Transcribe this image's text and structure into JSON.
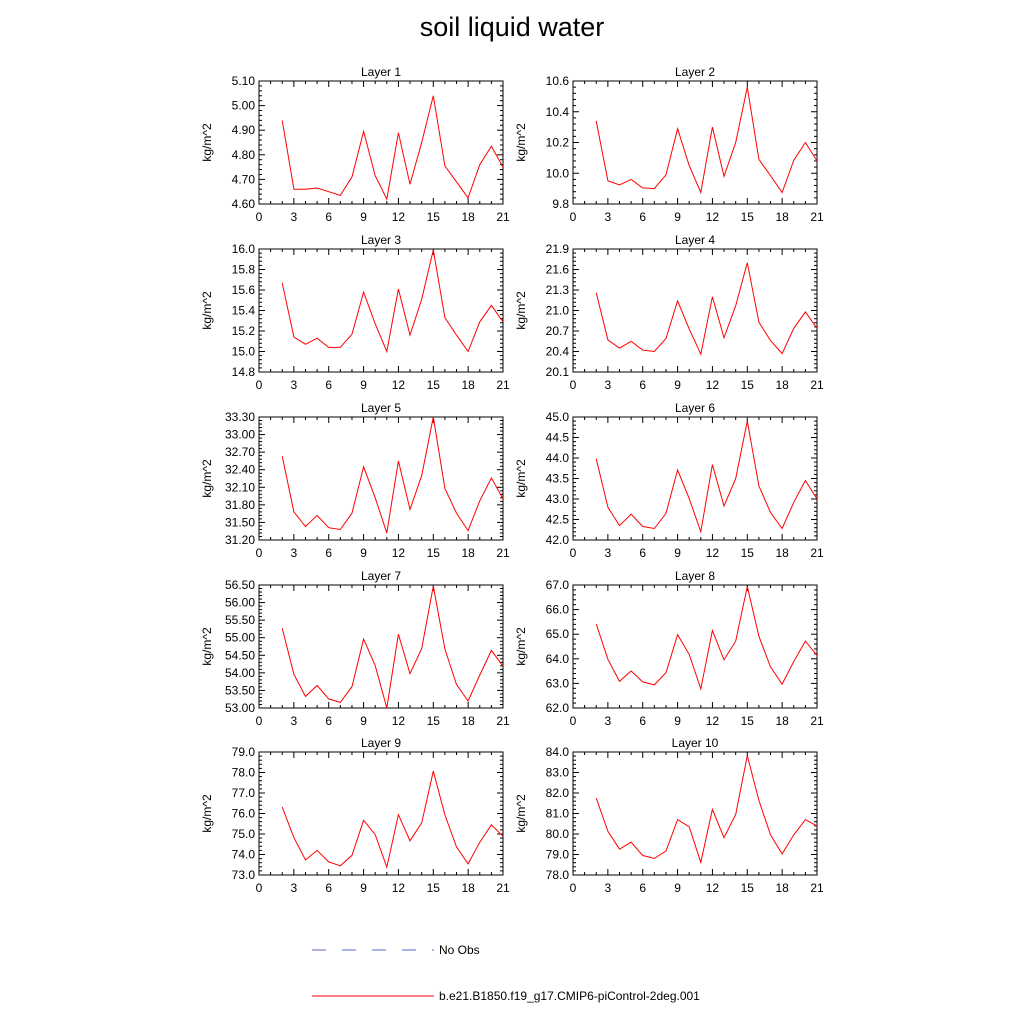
{
  "title": "soil liquid water",
  "legend": {
    "entries": [
      {
        "label": "No Obs",
        "color": "#5566cc",
        "style": "dashed"
      },
      {
        "label": "b.e21.B1850.f19_g17.CMIP6-piControl-2deg.001",
        "color": "#ff0000",
        "style": "solid"
      }
    ]
  },
  "chart_data": [
    {
      "type": "line",
      "title": "Layer 1",
      "ylabel": "kg/m^2",
      "xlim": [
        0,
        21
      ],
      "ylim": [
        4.6,
        5.1
      ],
      "xticks": [
        "0",
        "3",
        "6",
        "9",
        "12",
        "15",
        "18",
        "21"
      ],
      "yticks": [
        "4.60",
        "4.70",
        "4.80",
        "4.90",
        "5.00",
        "5.10"
      ],
      "x": [
        2,
        3,
        4,
        5,
        6,
        7,
        8,
        9,
        10,
        11,
        12,
        13,
        14,
        15,
        16,
        17,
        18,
        19,
        20,
        21
      ],
      "series": [
        {
          "name": "b.e21.B1850.f19_g17.CMIP6-piControl-2deg.001",
          "color": "#ff0000",
          "values": [
            4.94,
            4.66,
            4.66,
            4.665,
            4.65,
            4.635,
            4.71,
            4.895,
            4.715,
            4.62,
            4.89,
            4.68,
            4.85,
            5.04,
            4.755,
            4.69,
            4.625,
            4.76,
            4.835,
            4.75
          ]
        }
      ]
    },
    {
      "type": "line",
      "title": "Layer 2",
      "ylabel": "kg/m^2",
      "xlim": [
        0,
        21
      ],
      "ylim": [
        9.8,
        10.6
      ],
      "xticks": [
        "0",
        "3",
        "6",
        "9",
        "12",
        "15",
        "18",
        "21"
      ],
      "yticks": [
        "9.8",
        "10.0",
        "10.2",
        "10.4",
        "10.6"
      ],
      "x": [
        2,
        3,
        4,
        5,
        6,
        7,
        8,
        9,
        10,
        11,
        12,
        13,
        14,
        15,
        16,
        17,
        18,
        19,
        20,
        21
      ],
      "series": [
        {
          "name": "b.e21.B1850.f19_g17.CMIP6-piControl-2deg.001",
          "color": "#ff0000",
          "values": [
            10.34,
            9.95,
            9.925,
            9.96,
            9.905,
            9.9,
            9.99,
            10.29,
            10.05,
            9.875,
            10.3,
            9.98,
            10.2,
            10.56,
            10.09,
            9.985,
            9.875,
            10.085,
            10.2,
            10.08
          ]
        }
      ]
    },
    {
      "type": "line",
      "title": "Layer 3",
      "ylabel": "kg/m^2",
      "xlim": [
        0,
        21
      ],
      "ylim": [
        14.8,
        16.0
      ],
      "xticks": [
        "0",
        "3",
        "6",
        "9",
        "12",
        "15",
        "18",
        "21"
      ],
      "yticks": [
        "14.8",
        "15.0",
        "15.2",
        "15.4",
        "15.6",
        "15.8",
        "16.0"
      ],
      "x": [
        2,
        3,
        4,
        5,
        6,
        7,
        8,
        9,
        10,
        11,
        12,
        13,
        14,
        15,
        16,
        17,
        18,
        19,
        20,
        21
      ],
      "series": [
        {
          "name": "b.e21.B1850.f19_g17.CMIP6-piControl-2deg.001",
          "color": "#ff0000",
          "values": [
            15.67,
            15.14,
            15.07,
            15.13,
            15.04,
            15.04,
            15.17,
            15.58,
            15.27,
            15.0,
            15.61,
            15.16,
            15.51,
            15.99,
            15.33,
            15.16,
            15.0,
            15.29,
            15.45,
            15.29
          ]
        }
      ]
    },
    {
      "type": "line",
      "title": "Layer 4",
      "ylabel": "kg/m^2",
      "xlim": [
        0,
        21
      ],
      "ylim": [
        20.1,
        21.9
      ],
      "xticks": [
        "0",
        "3",
        "6",
        "9",
        "12",
        "15",
        "18",
        "21"
      ],
      "yticks": [
        "20.1",
        "20.4",
        "20.7",
        "21.0",
        "21.3",
        "21.6",
        "21.9"
      ],
      "x": [
        2,
        3,
        4,
        5,
        6,
        7,
        8,
        9,
        10,
        11,
        12,
        13,
        14,
        15,
        16,
        17,
        18,
        19,
        20,
        21
      ],
      "series": [
        {
          "name": "b.e21.B1850.f19_g17.CMIP6-piControl-2deg.001",
          "color": "#ff0000",
          "values": [
            21.26,
            20.57,
            20.45,
            20.55,
            20.42,
            20.4,
            20.59,
            21.14,
            20.73,
            20.36,
            21.2,
            20.6,
            21.07,
            21.7,
            20.83,
            20.56,
            20.37,
            20.74,
            20.98,
            20.74
          ]
        }
      ]
    },
    {
      "type": "line",
      "title": "Layer 5",
      "ylabel": "kg/m^2",
      "xlim": [
        0,
        21
      ],
      "ylim": [
        31.2,
        33.3
      ],
      "xticks": [
        "0",
        "3",
        "6",
        "9",
        "12",
        "15",
        "18",
        "21"
      ],
      "yticks": [
        "31.20",
        "31.50",
        "31.80",
        "32.10",
        "32.40",
        "32.70",
        "33.00",
        "33.30"
      ],
      "x": [
        2,
        3,
        4,
        5,
        6,
        7,
        8,
        9,
        10,
        11,
        12,
        13,
        14,
        15,
        16,
        17,
        18,
        19,
        20,
        21
      ],
      "series": [
        {
          "name": "b.e21.B1850.f19_g17.CMIP6-piControl-2deg.001",
          "color": "#ff0000",
          "values": [
            32.63,
            31.68,
            31.43,
            31.62,
            31.41,
            31.38,
            31.66,
            32.45,
            31.92,
            31.32,
            32.55,
            31.72,
            32.3,
            33.3,
            32.08,
            31.66,
            31.36,
            31.87,
            32.26,
            31.9
          ]
        }
      ]
    },
    {
      "type": "line",
      "title": "Layer 6",
      "ylabel": "kg/m^2",
      "xlim": [
        0,
        21
      ],
      "ylim": [
        42.0,
        45.0
      ],
      "xticks": [
        "0",
        "3",
        "6",
        "9",
        "12",
        "15",
        "18",
        "21"
      ],
      "yticks": [
        "42.0",
        "42.5",
        "43.0",
        "43.5",
        "44.0",
        "44.5",
        "45.0"
      ],
      "x": [
        2,
        3,
        4,
        5,
        6,
        7,
        8,
        9,
        10,
        11,
        12,
        13,
        14,
        15,
        16,
        17,
        18,
        19,
        20,
        21
      ],
      "series": [
        {
          "name": "b.e21.B1850.f19_g17.CMIP6-piControl-2deg.001",
          "color": "#ff0000",
          "values": [
            43.98,
            42.8,
            42.35,
            42.63,
            42.33,
            42.28,
            42.65,
            43.71,
            43.01,
            42.2,
            43.84,
            42.83,
            43.5,
            44.9,
            43.32,
            42.67,
            42.28,
            42.92,
            43.45,
            43.0
          ]
        }
      ]
    },
    {
      "type": "line",
      "title": "Layer 7",
      "ylabel": "kg/m^2",
      "xlim": [
        0,
        21
      ],
      "ylim": [
        53.0,
        56.5
      ],
      "xticks": [
        "0",
        "3",
        "6",
        "9",
        "12",
        "15",
        "18",
        "21"
      ],
      "yticks": [
        "53.00",
        "53.50",
        "54.00",
        "54.50",
        "55.00",
        "55.50",
        "56.00",
        "56.50"
      ],
      "x": [
        2,
        3,
        4,
        5,
        6,
        7,
        8,
        9,
        10,
        11,
        12,
        13,
        14,
        15,
        16,
        17,
        18,
        19,
        20,
        21
      ],
      "series": [
        {
          "name": "b.e21.B1850.f19_g17.CMIP6-piControl-2deg.001",
          "color": "#ff0000",
          "values": [
            55.27,
            53.96,
            53.33,
            53.64,
            53.26,
            53.16,
            53.61,
            54.96,
            54.21,
            53.0,
            55.1,
            53.98,
            54.69,
            56.47,
            54.68,
            53.67,
            53.2,
            53.94,
            54.64,
            54.19
          ]
        }
      ]
    },
    {
      "type": "line",
      "title": "Layer 8",
      "ylabel": "kg/m^2",
      "xlim": [
        0,
        21
      ],
      "ylim": [
        62.0,
        67.0
      ],
      "xticks": [
        "0",
        "3",
        "6",
        "9",
        "12",
        "15",
        "18",
        "21"
      ],
      "yticks": [
        "62.0",
        "63.0",
        "64.0",
        "65.0",
        "66.0",
        "67.0"
      ],
      "x": [
        2,
        3,
        4,
        5,
        6,
        7,
        8,
        9,
        10,
        11,
        12,
        13,
        14,
        15,
        16,
        17,
        18,
        19,
        20,
        21
      ],
      "series": [
        {
          "name": "b.e21.B1850.f19_g17.CMIP6-piControl-2deg.001",
          "color": "#ff0000",
          "values": [
            65.42,
            63.98,
            63.08,
            63.51,
            63.06,
            62.94,
            63.44,
            64.98,
            64.18,
            62.78,
            65.15,
            63.96,
            64.72,
            66.94,
            64.92,
            63.67,
            62.97,
            63.89,
            64.72,
            64.14
          ]
        }
      ]
    },
    {
      "type": "line",
      "title": "Layer 9",
      "ylabel": "kg/m^2",
      "xlim": [
        0,
        21
      ],
      "ylim": [
        73.0,
        79.0
      ],
      "xticks": [
        "0",
        "3",
        "6",
        "9",
        "12",
        "15",
        "18",
        "21"
      ],
      "yticks": [
        "73.0",
        "74.0",
        "75.0",
        "76.0",
        "77.0",
        "78.0",
        "79.0"
      ],
      "x": [
        2,
        3,
        4,
        5,
        6,
        7,
        8,
        9,
        10,
        11,
        12,
        13,
        14,
        15,
        16,
        17,
        18,
        19,
        20,
        21
      ],
      "series": [
        {
          "name": "b.e21.B1850.f19_g17.CMIP6-piControl-2deg.001",
          "color": "#ff0000",
          "values": [
            76.32,
            74.82,
            73.73,
            74.2,
            73.64,
            73.45,
            73.96,
            75.67,
            74.97,
            73.38,
            75.94,
            74.67,
            75.54,
            78.07,
            75.93,
            74.37,
            73.54,
            74.6,
            75.45,
            74.89
          ]
        }
      ]
    },
    {
      "type": "line",
      "title": "Layer 10",
      "ylabel": "kg/m^2",
      "xlim": [
        0,
        21
      ],
      "ylim": [
        78.0,
        84.0
      ],
      "xticks": [
        "0",
        "3",
        "6",
        "9",
        "12",
        "15",
        "18",
        "21"
      ],
      "yticks": [
        "78.0",
        "79.0",
        "80.0",
        "81.0",
        "82.0",
        "83.0",
        "84.0"
      ],
      "x": [
        2,
        3,
        4,
        5,
        6,
        7,
        8,
        9,
        10,
        11,
        12,
        13,
        14,
        15,
        16,
        17,
        18,
        19,
        20,
        21
      ],
      "series": [
        {
          "name": "b.e21.B1850.f19_g17.CMIP6-piControl-2deg.001",
          "color": "#ff0000",
          "values": [
            81.75,
            80.13,
            79.26,
            79.6,
            78.95,
            78.81,
            79.17,
            80.7,
            80.35,
            78.62,
            81.2,
            79.82,
            80.95,
            83.82,
            81.64,
            79.96,
            79.03,
            79.96,
            80.7,
            80.39
          ]
        }
      ]
    }
  ]
}
